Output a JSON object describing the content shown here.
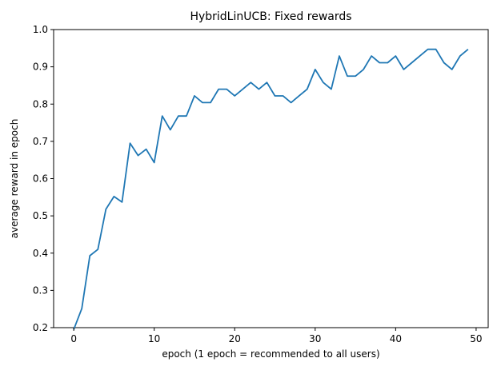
{
  "chart_data": {
    "type": "line",
    "title": "HybridLinUCB: Fixed rewards",
    "xlabel": "epoch (1 epoch = recommended to all users)",
    "ylabel": "average reward in epoch",
    "xlim": [
      -2.5,
      51.5
    ],
    "ylim": [
      0.2,
      1.0
    ],
    "xticks": [
      0,
      10,
      20,
      30,
      40,
      50
    ],
    "yticks": [
      0.2,
      0.3,
      0.4,
      0.5,
      0.6,
      0.7,
      0.8,
      0.9,
      1.0
    ],
    "xtick_labels": [
      "0",
      "10",
      "20",
      "30",
      "40",
      "50"
    ],
    "ytick_labels": [
      "0.2",
      "0.3",
      "0.4",
      "0.5",
      "0.6",
      "0.7",
      "0.8",
      "0.9",
      "1.0"
    ],
    "grid": false,
    "series": [
      {
        "color": "#1f77b4",
        "x": [
          0,
          1,
          2,
          3,
          4,
          5,
          6,
          7,
          8,
          9,
          10,
          11,
          12,
          13,
          14,
          15,
          16,
          17,
          18,
          19,
          20,
          21,
          22,
          23,
          24,
          25,
          26,
          27,
          28,
          29,
          30,
          31,
          32,
          33,
          34,
          35,
          36,
          37,
          38,
          39,
          40,
          41,
          42,
          43,
          44,
          45,
          46,
          47,
          48,
          49
        ],
        "y": [
          0.195,
          0.251,
          0.393,
          0.41,
          0.518,
          0.552,
          0.537,
          0.695,
          0.662,
          0.679,
          0.643,
          0.768,
          0.731,
          0.768,
          0.768,
          0.822,
          0.804,
          0.804,
          0.84,
          0.84,
          0.822,
          0.84,
          0.858,
          0.84,
          0.858,
          0.822,
          0.822,
          0.804,
          0.822,
          0.84,
          0.893,
          0.858,
          0.84,
          0.929,
          0.875,
          0.875,
          0.893,
          0.929,
          0.911,
          0.911,
          0.929,
          0.893,
          0.911,
          0.929,
          0.947,
          0.947,
          0.911,
          0.893,
          0.929,
          0.947
        ]
      }
    ]
  }
}
